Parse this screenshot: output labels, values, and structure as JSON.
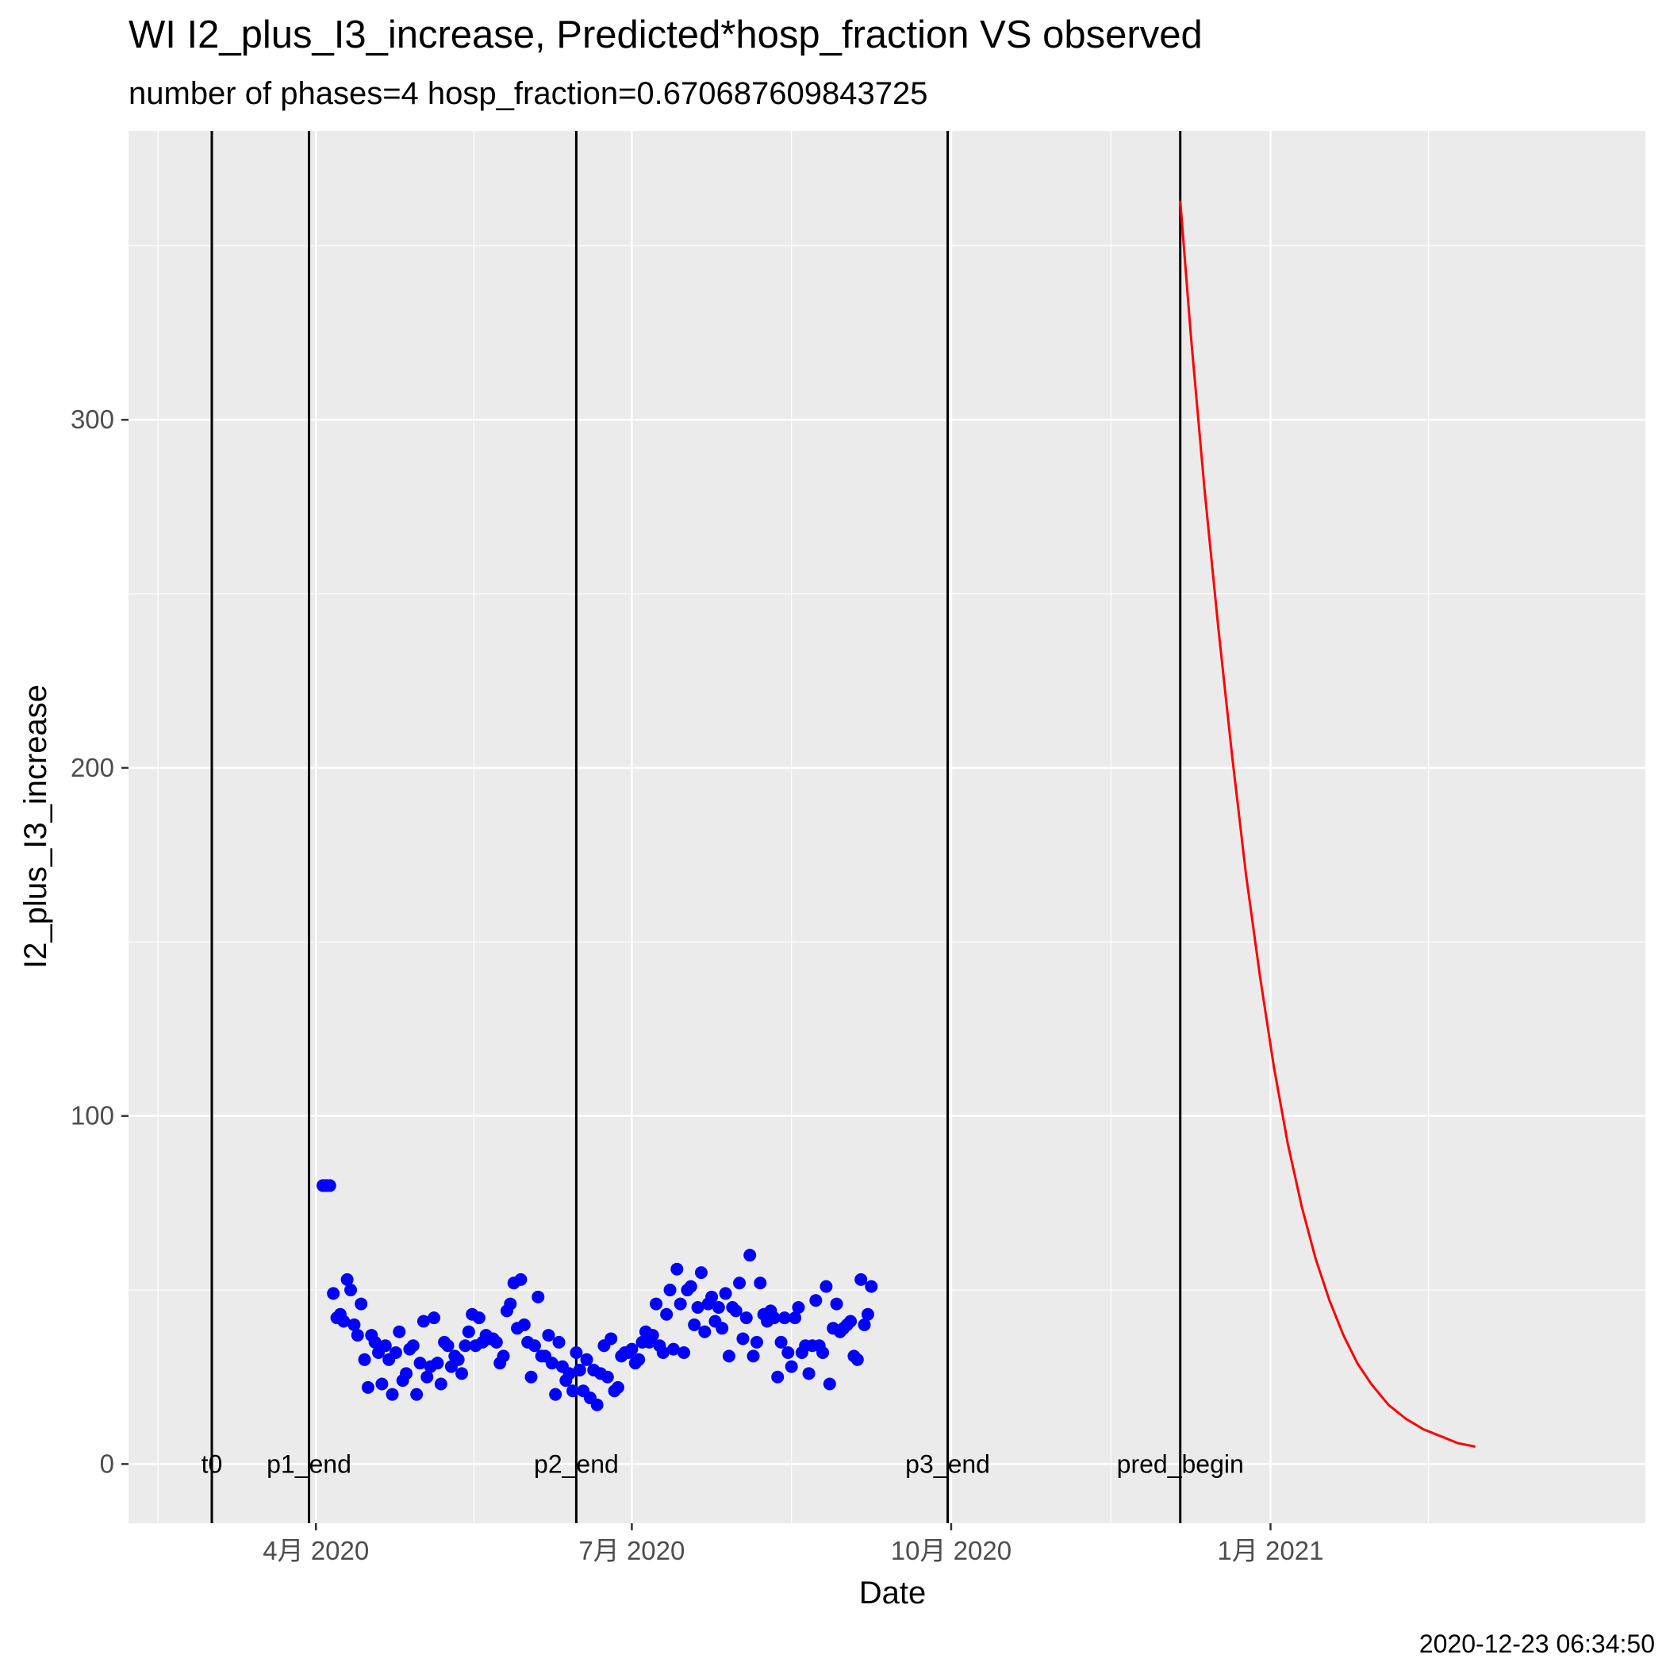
{
  "chart_data": {
    "type": "scatter",
    "title": "WI I2_plus_I3_increase, Predicted*hosp_fraction VS observed",
    "subtitle": "number of phases=4   hosp_fraction=0.670687609843725",
    "xlabel": "Date",
    "ylabel": "I2_plus_I3_increase",
    "caption": "2020-12-23 06:34:50",
    "xlim": [
      "2020-02-07",
      "2021-04-19"
    ],
    "ylim": [
      -17,
      383
    ],
    "x_ticks": [
      {
        "date": "2020-04-01",
        "label": "4月 2020"
      },
      {
        "date": "2020-07-01",
        "label": "7月 2020"
      },
      {
        "date": "2020-10-01",
        "label": "10月 2020"
      },
      {
        "date": "2021-01-01",
        "label": "1月 2021"
      }
    ],
    "y_ticks": [
      0,
      100,
      200,
      300
    ],
    "vertical_lines": [
      {
        "date": "2020-03-02",
        "label": "t0"
      },
      {
        "date": "2020-03-30",
        "label": "p1_end"
      },
      {
        "date": "2020-06-15",
        "label": "p2_end"
      },
      {
        "date": "2020-09-30",
        "label": "p3_end"
      },
      {
        "date": "2020-12-06",
        "label": "pred_begin"
      }
    ],
    "series": [
      {
        "type": "scatter",
        "color": "#0000ff",
        "start_date": "2020-04-03",
        "values": [
          80,
          80,
          80,
          49,
          42,
          43,
          41,
          53,
          50,
          40,
          37,
          46,
          30,
          22,
          37,
          35,
          32,
          23,
          34,
          30,
          20,
          32,
          38,
          24,
          26,
          33,
          34,
          20,
          29,
          41,
          25,
          28,
          42,
          29,
          23,
          35,
          34,
          28,
          31,
          30,
          26,
          34,
          38,
          43,
          34,
          42,
          35,
          37,
          36,
          36,
          35,
          29,
          31,
          44,
          46,
          52,
          39,
          53,
          40,
          35,
          25,
          34,
          48,
          31,
          31,
          37,
          29,
          20,
          35,
          28,
          24,
          26,
          21,
          32,
          27,
          21,
          30,
          19,
          27,
          17,
          26,
          34,
          25,
          36,
          21,
          22,
          31,
          32,
          32,
          33,
          29,
          30,
          35,
          38,
          35,
          37,
          46,
          34,
          32,
          43,
          50,
          33,
          56,
          46,
          32,
          50,
          51,
          40,
          45,
          55,
          38,
          46,
          48,
          41,
          45,
          39,
          49,
          31,
          45,
          44,
          52,
          36,
          42,
          60,
          31,
          35,
          52,
          43,
          41,
          44,
          42,
          25,
          35,
          42,
          32,
          28,
          42,
          45,
          32,
          34,
          26,
          34,
          47,
          34,
          32,
          51,
          23,
          39,
          46,
          38,
          39,
          40,
          41,
          31,
          30,
          53,
          40,
          43,
          51
        ]
      },
      {
        "type": "line",
        "color": "#ff0000",
        "points": [
          {
            "date": "2020-12-06",
            "value": 363
          },
          {
            "date": "2020-12-09",
            "value": 325
          },
          {
            "date": "2020-12-13",
            "value": 280
          },
          {
            "date": "2020-12-17",
            "value": 240
          },
          {
            "date": "2020-12-21",
            "value": 203
          },
          {
            "date": "2020-12-25",
            "value": 169
          },
          {
            "date": "2020-12-29",
            "value": 140
          },
          {
            "date": "2021-01-02",
            "value": 114
          },
          {
            "date": "2021-01-06",
            "value": 92
          },
          {
            "date": "2021-01-10",
            "value": 74
          },
          {
            "date": "2021-01-14",
            "value": 59
          },
          {
            "date": "2021-01-18",
            "value": 47
          },
          {
            "date": "2021-01-22",
            "value": 37
          },
          {
            "date": "2021-01-26",
            "value": 29
          },
          {
            "date": "2021-01-30",
            "value": 23
          },
          {
            "date": "2021-02-04",
            "value": 17
          },
          {
            "date": "2021-02-09",
            "value": 13
          },
          {
            "date": "2021-02-14",
            "value": 10
          },
          {
            "date": "2021-02-19",
            "value": 8
          },
          {
            "date": "2021-02-24",
            "value": 6
          },
          {
            "date": "2021-03-01",
            "value": 5
          }
        ]
      }
    ],
    "panel_background": "#ebebeb",
    "grid_color": "#ffffff",
    "grid": true
  }
}
